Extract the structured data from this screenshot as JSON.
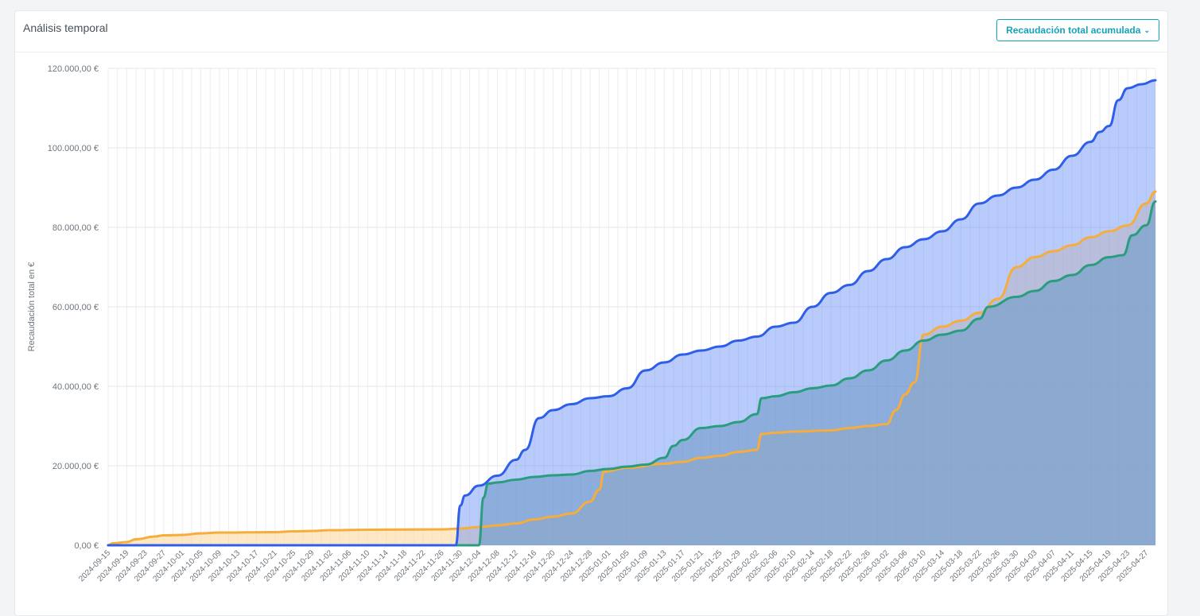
{
  "header": {
    "title": "Análisis temporal",
    "dropdown_label": "Recaudación total acumulada"
  },
  "chart_data": {
    "type": "area",
    "title": "",
    "xlabel": "",
    "ylabel": "Recaudación total en €",
    "ylim": [
      0,
      120000
    ],
    "y_ticks": [
      0,
      20000,
      40000,
      60000,
      80000,
      100000,
      120000
    ],
    "y_tick_labels": [
      "0,00 €",
      "20.000,00 €",
      "40.000,00 €",
      "60.000,00 €",
      "80.000,00 €",
      "100.000,00 €",
      "120.000,00 €"
    ],
    "x_start": "2024-09-15",
    "x_end": "2025-04-29",
    "x_tick_labels": [
      "2024-09-15",
      "2024-09-19",
      "2024-09-23",
      "2024-09-27",
      "2024-10-01",
      "2024-10-05",
      "2024-10-09",
      "2024-10-13",
      "2024-10-17",
      "2024-10-21",
      "2024-10-25",
      "2024-10-29",
      "2024-11-02",
      "2024-11-06",
      "2024-11-10",
      "2024-11-14",
      "2024-11-18",
      "2024-11-22",
      "2024-11-26",
      "2024-11-30",
      "2024-12-04",
      "2024-12-08",
      "2024-12-12",
      "2024-12-16",
      "2024-12-20",
      "2024-12-24",
      "2024-12-28",
      "2025-01-01",
      "2025-01-05",
      "2025-01-09",
      "2025-01-13",
      "2025-01-17",
      "2025-01-21",
      "2025-01-25",
      "2025-01-29",
      "2025-02-02",
      "2025-02-06",
      "2025-02-10",
      "2025-02-14",
      "2025-02-18",
      "2025-02-22",
      "2025-02-26",
      "2025-03-02",
      "2025-03-06",
      "2025-03-10",
      "2025-03-14",
      "2025-03-18",
      "2025-03-22",
      "2025-03-26",
      "2025-03-30",
      "2025-04-03",
      "2025-04-07",
      "2025-04-11",
      "2025-04-15",
      "2025-04-19",
      "2025-04-23",
      "2025-04-27"
    ],
    "grid": true,
    "legend": "none",
    "series": [
      {
        "color": "#f6ad3c",
        "fill": "rgba(252,217,160,0.6)",
        "points": [
          [
            "2024-09-15",
            0
          ],
          [
            "2024-09-16",
            500
          ],
          [
            "2024-09-19",
            800
          ],
          [
            "2024-09-21",
            1500
          ],
          [
            "2024-09-25",
            2200
          ],
          [
            "2024-09-27",
            2500
          ],
          [
            "2024-10-01",
            2600
          ],
          [
            "2024-10-05",
            3000
          ],
          [
            "2024-10-09",
            3200
          ],
          [
            "2024-10-21",
            3300
          ],
          [
            "2024-10-25",
            3500
          ],
          [
            "2024-10-29",
            3600
          ],
          [
            "2024-11-02",
            3800
          ],
          [
            "2024-11-10",
            3900
          ],
          [
            "2024-11-26",
            4000
          ],
          [
            "2024-11-30",
            4200
          ],
          [
            "2024-12-04",
            4600
          ],
          [
            "2024-12-08",
            5000
          ],
          [
            "2024-12-12",
            5500
          ],
          [
            "2024-12-16",
            6500
          ],
          [
            "2024-12-20",
            7200
          ],
          [
            "2024-12-24",
            8000
          ],
          [
            "2024-12-28",
            11000
          ],
          [
            "2024-12-30",
            14000
          ],
          [
            "2024-12-31",
            18500
          ],
          [
            "2025-01-05",
            19500
          ],
          [
            "2025-01-13",
            20500
          ],
          [
            "2025-01-17",
            21000
          ],
          [
            "2025-01-21",
            22000
          ],
          [
            "2025-01-25",
            22500
          ],
          [
            "2025-01-29",
            23500
          ],
          [
            "2025-02-02",
            24000
          ],
          [
            "2025-02-03",
            28000
          ],
          [
            "2025-02-06",
            28300
          ],
          [
            "2025-02-10",
            28600
          ],
          [
            "2025-02-18",
            28900
          ],
          [
            "2025-02-22",
            29500
          ],
          [
            "2025-02-26",
            30000
          ],
          [
            "2025-03-02",
            30500
          ],
          [
            "2025-03-04",
            34000
          ],
          [
            "2025-03-06",
            38000
          ],
          [
            "2025-03-08",
            41000
          ],
          [
            "2025-03-10",
            53000
          ],
          [
            "2025-03-14",
            55000
          ],
          [
            "2025-03-18",
            56500
          ],
          [
            "2025-03-22",
            58500
          ],
          [
            "2025-03-26",
            62000
          ],
          [
            "2025-03-30",
            70000
          ],
          [
            "2025-04-03",
            72500
          ],
          [
            "2025-04-07",
            74000
          ],
          [
            "2025-04-11",
            75500
          ],
          [
            "2025-04-15",
            77500
          ],
          [
            "2025-04-19",
            79000
          ],
          [
            "2025-04-23",
            80500
          ],
          [
            "2025-04-27",
            86000
          ],
          [
            "2025-04-29",
            89000
          ]
        ]
      },
      {
        "color": "#2a9d7f",
        "fill": "rgba(110,160,160,0.55)",
        "points": [
          [
            "2024-09-15",
            0
          ],
          [
            "2024-12-04",
            0
          ],
          [
            "2024-12-05",
            12000
          ],
          [
            "2024-12-06",
            15500
          ],
          [
            "2024-12-08",
            15800
          ],
          [
            "2024-12-12",
            16500
          ],
          [
            "2024-12-16",
            17200
          ],
          [
            "2024-12-20",
            17600
          ],
          [
            "2024-12-24",
            17800
          ],
          [
            "2024-12-28",
            18700
          ],
          [
            "2025-01-01",
            19200
          ],
          [
            "2025-01-05",
            19800
          ],
          [
            "2025-01-09",
            20300
          ],
          [
            "2025-01-13",
            22000
          ],
          [
            "2025-01-15",
            25000
          ],
          [
            "2025-01-17",
            26500
          ],
          [
            "2025-01-21",
            29500
          ],
          [
            "2025-01-25",
            30000
          ],
          [
            "2025-01-29",
            31000
          ],
          [
            "2025-02-02",
            33000
          ],
          [
            "2025-02-03",
            37000
          ],
          [
            "2025-02-06",
            37500
          ],
          [
            "2025-02-10",
            38500
          ],
          [
            "2025-02-14",
            39500
          ],
          [
            "2025-02-18",
            40200
          ],
          [
            "2025-02-22",
            42000
          ],
          [
            "2025-02-26",
            44000
          ],
          [
            "2025-03-02",
            46500
          ],
          [
            "2025-03-06",
            49000
          ],
          [
            "2025-03-10",
            51500
          ],
          [
            "2025-03-14",
            53000
          ],
          [
            "2025-03-18",
            54000
          ],
          [
            "2025-03-22",
            57000
          ],
          [
            "2025-03-24",
            60000
          ],
          [
            "2025-03-30",
            62500
          ],
          [
            "2025-04-03",
            64000
          ],
          [
            "2025-04-07",
            66500
          ],
          [
            "2025-04-11",
            68000
          ],
          [
            "2025-04-15",
            70500
          ],
          [
            "2025-04-19",
            72500
          ],
          [
            "2025-04-22",
            73000
          ],
          [
            "2025-04-24",
            78000
          ],
          [
            "2025-04-27",
            80500
          ],
          [
            "2025-04-29",
            86500
          ]
        ]
      },
      {
        "color": "#2f5ee8",
        "fill": "rgba(100,140,245,0.45)",
        "points": [
          [
            "2024-09-15",
            0
          ],
          [
            "2024-11-29",
            0
          ],
          [
            "2024-11-30",
            10000
          ],
          [
            "2024-12-01",
            12500
          ],
          [
            "2024-12-04",
            15000
          ],
          [
            "2024-12-08",
            17500
          ],
          [
            "2024-12-12",
            21500
          ],
          [
            "2024-12-14",
            24000
          ],
          [
            "2024-12-17",
            32000
          ],
          [
            "2024-12-20",
            34000
          ],
          [
            "2024-12-24",
            35500
          ],
          [
            "2024-12-28",
            37000
          ],
          [
            "2025-01-01",
            37500
          ],
          [
            "2025-01-05",
            39500
          ],
          [
            "2025-01-09",
            44000
          ],
          [
            "2025-01-13",
            46000
          ],
          [
            "2025-01-17",
            48000
          ],
          [
            "2025-01-21",
            49000
          ],
          [
            "2025-01-25",
            50000
          ],
          [
            "2025-01-29",
            51500
          ],
          [
            "2025-02-02",
            52500
          ],
          [
            "2025-02-06",
            55000
          ],
          [
            "2025-02-10",
            56000
          ],
          [
            "2025-02-14",
            60000
          ],
          [
            "2025-02-18",
            63500
          ],
          [
            "2025-02-22",
            65500
          ],
          [
            "2025-02-26",
            69000
          ],
          [
            "2025-03-02",
            72000
          ],
          [
            "2025-03-06",
            75000
          ],
          [
            "2025-03-10",
            77000
          ],
          [
            "2025-03-14",
            79000
          ],
          [
            "2025-03-18",
            82000
          ],
          [
            "2025-03-22",
            86000
          ],
          [
            "2025-03-26",
            88000
          ],
          [
            "2025-03-30",
            90000
          ],
          [
            "2025-04-03",
            92000
          ],
          [
            "2025-04-07",
            94500
          ],
          [
            "2025-04-11",
            98000
          ],
          [
            "2025-04-15",
            101500
          ],
          [
            "2025-04-17",
            104000
          ],
          [
            "2025-04-19",
            105500
          ],
          [
            "2025-04-21",
            112000
          ],
          [
            "2025-04-23",
            115000
          ],
          [
            "2025-04-26",
            116000
          ],
          [
            "2025-04-29",
            117000
          ]
        ]
      }
    ]
  }
}
